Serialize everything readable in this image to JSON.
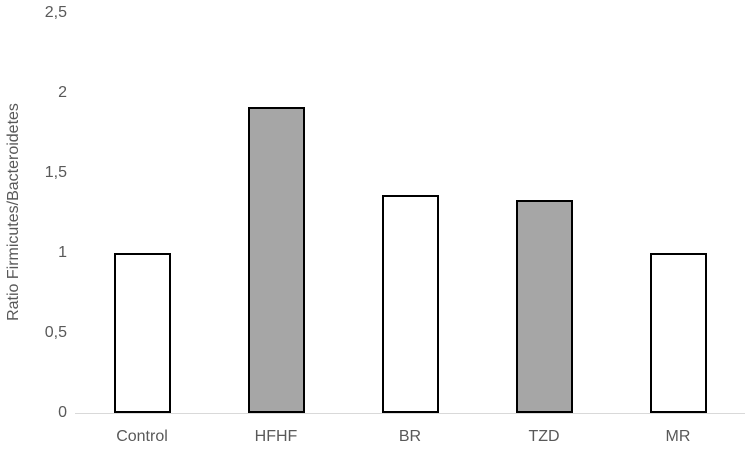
{
  "chart_data": {
    "type": "bar",
    "title": "",
    "xlabel": "",
    "ylabel": "Ratio Firmicutes/Bacteroidetes",
    "categories": [
      "Control",
      "HFHF",
      "BR",
      "TZD",
      "MR"
    ],
    "values": [
      1.0,
      1.91,
      1.36,
      1.33,
      1.0
    ],
    "bar_fills": [
      "#ffffff",
      "#a6a6a6",
      "#ffffff",
      "#a6a6a6",
      "#ffffff"
    ],
    "bar_border_color": "#000000",
    "ylim": [
      0,
      2.5
    ],
    "ytick_values": [
      0,
      0.5,
      1,
      1.5,
      2,
      2.5
    ],
    "ytick_labels": [
      "0",
      "0,5",
      "1",
      "1,5",
      "2",
      "2,5"
    ],
    "grid": false,
    "legend": "none",
    "axis_line_color": "#d9d9d9",
    "text_color": "#595959"
  }
}
